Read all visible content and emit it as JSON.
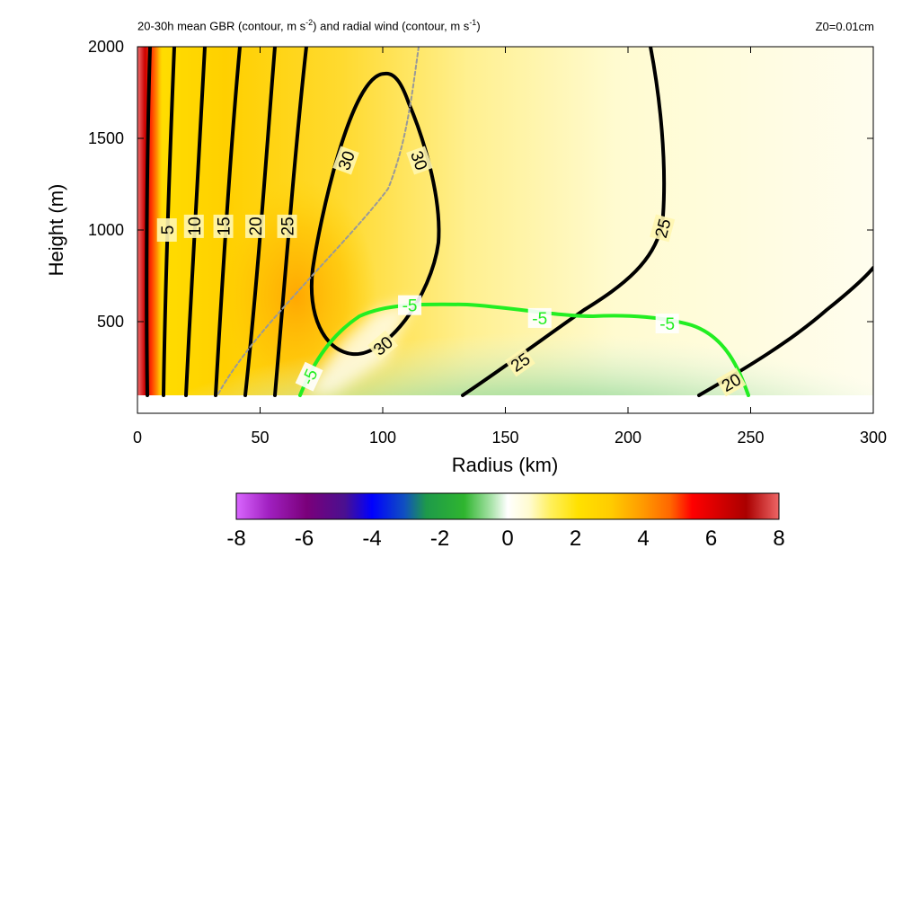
{
  "chart_data": {
    "type": "heatmap",
    "title_left_parts": [
      "20-30h mean GBR (contour, m s",
      "-2",
      ") and radial wind (contour, m s",
      "-1",
      ")"
    ],
    "title_right": "Z0=0.01cm",
    "xlabel": "Radius (km)",
    "ylabel": "Height (m)",
    "xlim": [
      0,
      300
    ],
    "ylim": [
      0,
      2000
    ],
    "x_ticks": [
      "0",
      "50",
      "100",
      "150",
      "200",
      "250",
      "300"
    ],
    "y_ticks": [
      "500",
      "1000",
      "1500",
      "2000"
    ],
    "colorbar": {
      "range": [
        -8,
        8
      ],
      "tick_labels": [
        "-8",
        "-6",
        "-4",
        "-2",
        "0",
        "2",
        "4",
        "6",
        "8"
      ],
      "colors": [
        "#d966ff",
        "#7a007a",
        "#0000ff",
        "#2fb52f",
        "#ffffff",
        "#ffee00",
        "#ff9900",
        "#ff0000",
        "#ee5555"
      ]
    },
    "radial_wind_contours": {
      "levels": [
        5,
        10,
        15,
        20,
        25,
        30
      ],
      "labels": [
        {
          "text": "5",
          "x": 12,
          "y": 1000,
          "angle": -90
        },
        {
          "text": "10",
          "x": 23,
          "y": 1020,
          "angle": -90
        },
        {
          "text": "15",
          "x": 35,
          "y": 1020,
          "angle": -90
        },
        {
          "text": "20",
          "x": 48,
          "y": 1020,
          "angle": -90
        },
        {
          "text": "25",
          "x": 61,
          "y": 1020,
          "angle": -90
        },
        {
          "text": "30",
          "x": 85,
          "y": 1380,
          "angle": -70
        },
        {
          "text": "30",
          "x": 115,
          "y": 1380,
          "angle": 70
        },
        {
          "text": "30",
          "x": 100,
          "y": 370,
          "angle": -40
        },
        {
          "text": "25",
          "x": 156,
          "y": 280,
          "angle": -35
        },
        {
          "text": "25",
          "x": 214,
          "y": 1010,
          "angle": -75
        },
        {
          "text": "20",
          "x": 242,
          "y": 170,
          "angle": -30
        }
      ]
    },
    "gbr_contours": {
      "level": -5,
      "labels": [
        {
          "text": "-5",
          "x": 70,
          "y": 200,
          "angle": -65
        },
        {
          "text": "-5",
          "x": 111,
          "y": 590,
          "angle": 0
        },
        {
          "text": "-5",
          "x": 164,
          "y": 520,
          "angle": 0
        },
        {
          "text": "-5",
          "x": 216,
          "y": 490,
          "angle": 0
        }
      ]
    }
  }
}
